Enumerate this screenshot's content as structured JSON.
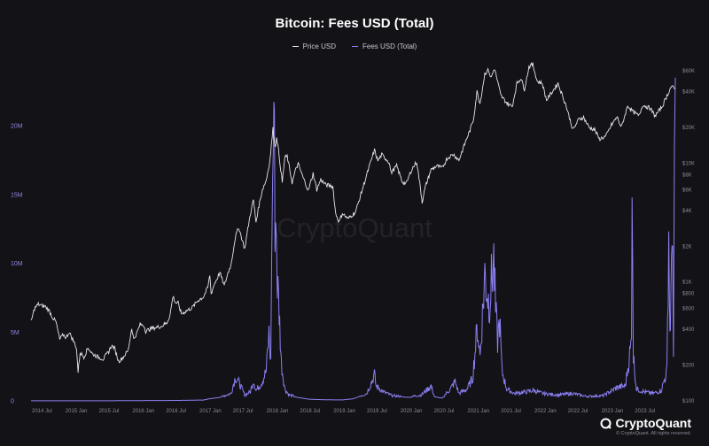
{
  "chart_data": {
    "type": "line",
    "title": "Bitcoin: Fees USD (Total)",
    "legend_placement": "top-center",
    "grid": false,
    "x_ticks": [
      "2014 Jul",
      "2015 Jan",
      "2015 Jul",
      "2016 Jan",
      "2016 Jul",
      "2017 Jan",
      "2017 Jul",
      "2018 Jan",
      "2018 Jul",
      "2019 Jan",
      "2019 Jul",
      "2020 Jan",
      "2020 Jul",
      "2021 Jan",
      "2021 Jul",
      "2022 Jan",
      "2022 Jul",
      "2023 Jan",
      "2023 Jul"
    ],
    "left_axis": {
      "ticks": [
        "0",
        "5M",
        "10M",
        "15M",
        "20M"
      ],
      "tick_values": [
        0,
        5000000,
        10000000,
        15000000,
        20000000
      ],
      "range": [
        0,
        24000000
      ]
    },
    "right_axis": {
      "scale": "log",
      "ticks": [
        "$100",
        "$200",
        "$400",
        "$600",
        "$800",
        "$1K",
        "$2K",
        "$4K",
        "$6K",
        "$8K",
        "$10K",
        "$20K",
        "$40K",
        "$60K"
      ],
      "tick_values": [
        100,
        200,
        400,
        600,
        800,
        1000,
        2000,
        4000,
        6000,
        8000,
        10000,
        20000,
        40000,
        60000
      ],
      "range": [
        100,
        60000
      ]
    },
    "series": [
      {
        "name": "Price USD",
        "axis": "right",
        "color": "#e6e6ea",
        "points": [
          [
            "2014-05-01",
            460
          ],
          [
            "2014-05-20",
            600
          ],
          [
            "2014-06-10",
            650
          ],
          [
            "2014-07-01",
            630
          ],
          [
            "2014-07-20",
            620
          ],
          [
            "2014-08-10",
            570
          ],
          [
            "2014-08-25",
            510
          ],
          [
            "2014-09-15",
            460
          ],
          [
            "2014-10-05",
            330
          ],
          [
            "2014-10-25",
            360
          ],
          [
            "2014-11-10",
            340
          ],
          [
            "2014-11-25",
            380
          ],
          [
            "2014-12-15",
            330
          ],
          [
            "2015-01-05",
            280
          ],
          [
            "2015-01-14",
            175
          ],
          [
            "2015-01-25",
            255
          ],
          [
            "2015-02-15",
            235
          ],
          [
            "2015-03-10",
            280
          ],
          [
            "2015-04-01",
            250
          ],
          [
            "2015-05-01",
            235
          ],
          [
            "2015-06-01",
            225
          ],
          [
            "2015-07-01",
            260
          ],
          [
            "2015-07-15",
            290
          ],
          [
            "2015-08-01",
            280
          ],
          [
            "2015-08-24",
            215
          ],
          [
            "2015-09-15",
            230
          ],
          [
            "2015-10-15",
            265
          ],
          [
            "2015-11-04",
            410
          ],
          [
            "2015-11-15",
            330
          ],
          [
            "2015-12-01",
            370
          ],
          [
            "2015-12-20",
            440
          ],
          [
            "2016-01-10",
            430
          ],
          [
            "2016-01-20",
            385
          ],
          [
            "2016-02-15",
            405
          ],
          [
            "2016-03-15",
            415
          ],
          [
            "2016-04-15",
            425
          ],
          [
            "2016-05-15",
            455
          ],
          [
            "2016-06-01",
            530
          ],
          [
            "2016-06-17",
            760
          ],
          [
            "2016-07-01",
            670
          ],
          [
            "2016-07-15",
            665
          ],
          [
            "2016-08-02",
            540
          ],
          [
            "2016-09-01",
            575
          ],
          [
            "2016-10-01",
            610
          ],
          [
            "2016-11-01",
            700
          ],
          [
            "2016-12-01",
            750
          ],
          [
            "2016-12-25",
            900
          ],
          [
            "2017-01-05",
            1150
          ],
          [
            "2017-01-12",
            800
          ],
          [
            "2017-02-01",
            980
          ],
          [
            "2017-03-01",
            1200
          ],
          [
            "2017-03-25",
            930
          ],
          [
            "2017-04-15",
            1200
          ],
          [
            "2017-05-01",
            1400
          ],
          [
            "2017-05-25",
            2400
          ],
          [
            "2017-06-12",
            2900
          ],
          [
            "2017-07-15",
            1900
          ],
          [
            "2017-08-01",
            2800
          ],
          [
            "2017-08-20",
            4100
          ],
          [
            "2017-09-01",
            4900
          ],
          [
            "2017-09-15",
            3200
          ],
          [
            "2017-10-01",
            4400
          ],
          [
            "2017-10-20",
            6000
          ],
          [
            "2017-11-10",
            7200
          ],
          [
            "2017-11-30",
            10500
          ],
          [
            "2017-12-17",
            19500
          ],
          [
            "2017-12-30",
            13500
          ],
          [
            "2018-01-06",
            17000
          ],
          [
            "2018-01-20",
            11500
          ],
          [
            "2018-02-06",
            6900
          ],
          [
            "2018-02-20",
            11200
          ],
          [
            "2018-03-05",
            11400
          ],
          [
            "2018-04-01",
            6900
          ],
          [
            "2018-04-25",
            9300
          ],
          [
            "2018-05-05",
            9800
          ],
          [
            "2018-06-01",
            7500
          ],
          [
            "2018-06-29",
            5900
          ],
          [
            "2018-07-25",
            8200
          ],
          [
            "2018-08-14",
            6000
          ],
          [
            "2018-09-05",
            7300
          ],
          [
            "2018-10-01",
            6600
          ],
          [
            "2018-11-10",
            6400
          ],
          [
            "2018-11-25",
            3800
          ],
          [
            "2018-12-15",
            3200
          ],
          [
            "2019-01-01",
            3800
          ],
          [
            "2019-02-01",
            3400
          ],
          [
            "2019-03-15",
            3900
          ],
          [
            "2019-04-05",
            5000
          ],
          [
            "2019-05-15",
            8000
          ],
          [
            "2019-06-26",
            12900
          ],
          [
            "2019-07-15",
            10500
          ],
          [
            "2019-08-05",
            11800
          ],
          [
            "2019-09-15",
            10200
          ],
          [
            "2019-09-25",
            8300
          ],
          [
            "2019-10-26",
            9500
          ],
          [
            "2019-11-25",
            7000
          ],
          [
            "2019-12-17",
            6700
          ],
          [
            "2020-01-15",
            8800
          ],
          [
            "2020-02-13",
            10300
          ],
          [
            "2020-03-12",
            5000
          ],
          [
            "2020-03-13",
            4700
          ],
          [
            "2020-04-01",
            6400
          ],
          [
            "2020-05-01",
            8800
          ],
          [
            "2020-06-01",
            9500
          ],
          [
            "2020-07-01",
            9100
          ],
          [
            "2020-07-28",
            11000
          ],
          [
            "2020-09-01",
            11900
          ],
          [
            "2020-10-01",
            10600
          ],
          [
            "2020-11-05",
            15000
          ],
          [
            "2020-12-01",
            19000
          ],
          [
            "2020-12-20",
            23500
          ],
          [
            "2021-01-08",
            40000
          ],
          [
            "2021-01-25",
            32000
          ],
          [
            "2021-02-20",
            57000
          ],
          [
            "2021-03-13",
            61000
          ],
          [
            "2021-03-25",
            52000
          ],
          [
            "2021-04-14",
            63000
          ],
          [
            "2021-05-19",
            37000
          ],
          [
            "2021-06-22",
            32000
          ],
          [
            "2021-07-20",
            30000
          ],
          [
            "2021-08-15",
            47000
          ],
          [
            "2021-09-06",
            52000
          ],
          [
            "2021-09-25",
            42000
          ],
          [
            "2021-10-20",
            65000
          ],
          [
            "2021-11-10",
            68000
          ],
          [
            "2021-12-04",
            49000
          ],
          [
            "2022-01-01",
            47000
          ],
          [
            "2022-01-24",
            34000
          ],
          [
            "2022-03-28",
            47000
          ],
          [
            "2022-05-10",
            31000
          ],
          [
            "2022-06-18",
            19000
          ],
          [
            "2022-07-20",
            23500
          ],
          [
            "2022-08-15",
            24300
          ],
          [
            "2022-09-15",
            20000
          ],
          [
            "2022-10-15",
            19200
          ],
          [
            "2022-11-09",
            16000
          ],
          [
            "2022-12-15",
            16800
          ],
          [
            "2023-01-15",
            21000
          ],
          [
            "2023-02-15",
            24500
          ],
          [
            "2023-03-10",
            20000
          ],
          [
            "2023-04-14",
            30500
          ],
          [
            "2023-05-15",
            27000
          ],
          [
            "2023-06-15",
            25000
          ],
          [
            "2023-07-05",
            31000
          ],
          [
            "2023-08-15",
            29000
          ],
          [
            "2023-09-11",
            25000
          ],
          [
            "2023-10-20",
            30000
          ],
          [
            "2023-11-15",
            37000
          ],
          [
            "2023-12-08",
            44000
          ],
          [
            "2023-12-20",
            43000
          ],
          [
            "2023-12-31",
            42000
          ]
        ]
      },
      {
        "name": "Fees USD (Total)",
        "axis": "left",
        "color": "#8b80f2",
        "points": [
          [
            "2014-05-01",
            5000
          ],
          [
            "2015-01-01",
            7000
          ],
          [
            "2015-07-01",
            10000
          ],
          [
            "2016-01-01",
            20000
          ],
          [
            "2016-07-01",
            30000
          ],
          [
            "2016-12-01",
            60000
          ],
          [
            "2017-01-01",
            150000
          ],
          [
            "2017-03-01",
            250000
          ],
          [
            "2017-05-01",
            500000
          ],
          [
            "2017-05-25",
            1600000
          ],
          [
            "2017-06-15",
            1200000
          ],
          [
            "2017-07-15",
            400000
          ],
          [
            "2017-08-15",
            600000
          ],
          [
            "2017-09-01",
            1400000
          ],
          [
            "2017-09-15",
            700000
          ],
          [
            "2017-10-15",
            1200000
          ],
          [
            "2017-11-10",
            2000000
          ],
          [
            "2017-11-25",
            4500000
          ],
          [
            "2017-12-05",
            2500000
          ],
          [
            "2017-12-10",
            11000000
          ],
          [
            "2017-12-15",
            14000000
          ],
          [
            "2017-12-22",
            20500000
          ],
          [
            "2017-12-28",
            12500000
          ],
          [
            "2018-01-05",
            11500000
          ],
          [
            "2018-01-10",
            8000000
          ],
          [
            "2018-01-20",
            6000000
          ],
          [
            "2018-02-01",
            2500000
          ],
          [
            "2018-02-20",
            800000
          ],
          [
            "2018-03-15",
            400000
          ],
          [
            "2018-05-01",
            250000
          ],
          [
            "2018-07-01",
            120000
          ],
          [
            "2018-10-01",
            80000
          ],
          [
            "2019-01-01",
            70000
          ],
          [
            "2019-03-01",
            150000
          ],
          [
            "2019-05-15",
            500000
          ],
          [
            "2019-06-15",
            1400000
          ],
          [
            "2019-06-26",
            1800000
          ],
          [
            "2019-07-05",
            1000000
          ],
          [
            "2019-08-15",
            600000
          ],
          [
            "2019-10-01",
            350000
          ],
          [
            "2020-01-01",
            250000
          ],
          [
            "2020-03-10",
            400000
          ],
          [
            "2020-05-01",
            1000000
          ],
          [
            "2020-05-20",
            300000
          ],
          [
            "2020-07-01",
            200000
          ],
          [
            "2020-08-15",
            800000
          ],
          [
            "2020-09-10",
            1300000
          ],
          [
            "2020-10-01",
            500000
          ],
          [
            "2020-11-15",
            800000
          ],
          [
            "2020-12-15",
            1500000
          ],
          [
            "2021-01-10",
            5000000
          ],
          [
            "2021-01-25",
            3000000
          ],
          [
            "2021-02-20",
            8500000
          ],
          [
            "2021-03-15",
            6500000
          ],
          [
            "2021-04-10",
            9500000
          ],
          [
            "2021-04-20",
            6000000
          ],
          [
            "2021-05-01",
            4000000
          ],
          [
            "2021-05-12",
            5500000
          ],
          [
            "2021-05-25",
            2000000
          ],
          [
            "2021-06-20",
            800000
          ],
          [
            "2021-08-01",
            500000
          ],
          [
            "2021-10-01",
            600000
          ],
          [
            "2021-11-15",
            700000
          ],
          [
            "2022-01-01",
            500000
          ],
          [
            "2022-04-01",
            400000
          ],
          [
            "2022-06-15",
            500000
          ],
          [
            "2022-09-01",
            300000
          ],
          [
            "2022-12-01",
            350000
          ],
          [
            "2023-02-15",
            900000
          ],
          [
            "2023-04-01",
            1000000
          ],
          [
            "2023-05-05",
            4000000
          ],
          [
            "2023-05-08",
            17500000
          ],
          [
            "2023-05-15",
            3000000
          ],
          [
            "2023-06-01",
            800000
          ],
          [
            "2023-07-15",
            600000
          ],
          [
            "2023-09-01",
            500000
          ],
          [
            "2023-10-15",
            700000
          ],
          [
            "2023-11-15",
            2000000
          ],
          [
            "2023-11-25",
            11500000
          ],
          [
            "2023-12-01",
            4500000
          ],
          [
            "2023-12-10",
            8000000
          ],
          [
            "2023-12-16",
            13000000
          ],
          [
            "2023-12-21",
            3000000
          ],
          [
            "2023-12-26",
            15000000
          ],
          [
            "2023-12-31",
            23500000
          ]
        ]
      }
    ],
    "spikes": [
      {
        "series": "Fees USD (Total)",
        "x": "2023-05-08",
        "y": 17500000
      },
      {
        "series": "Fees USD (Total)",
        "x": "2023-12-31",
        "y": 23500000
      }
    ],
    "watermark": "CryptoQuant"
  },
  "brand": {
    "name": "CryptoQuant",
    "copyright": "© CryptoQuant. All rights reserved."
  }
}
